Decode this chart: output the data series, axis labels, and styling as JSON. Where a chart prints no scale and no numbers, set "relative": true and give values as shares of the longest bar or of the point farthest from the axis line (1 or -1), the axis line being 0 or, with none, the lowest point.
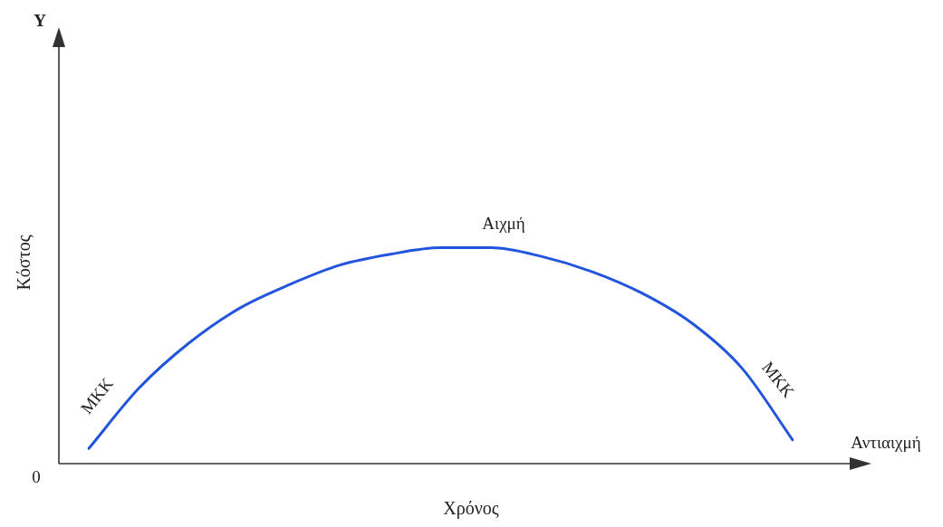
{
  "chart_data": {
    "type": "line",
    "relative": true,
    "xlabel": "Χρόνος",
    "ylabel": "Κόστος",
    "categories": [
      null,
      null,
      null,
      null,
      null,
      null,
      null,
      null,
      null,
      null,
      null,
      null,
      null,
      null,
      null
    ],
    "series": [
      {
        "color": "#2255dd",
        "values": [
          0.07,
          0.35,
          0.56,
          0.72,
          0.83,
          0.92,
          0.97,
          1.0,
          1.0,
          0.96,
          0.89,
          0.79,
          0.65,
          0.44,
          0.11
        ]
      }
    ],
    "annotations": [
      "Y",
      "0",
      "Αιχμή",
      "ΜΚΚ",
      "ΜΚΚ",
      "Αντιαιχμή"
    ],
    "marker": "none",
    "legend": false
  }
}
